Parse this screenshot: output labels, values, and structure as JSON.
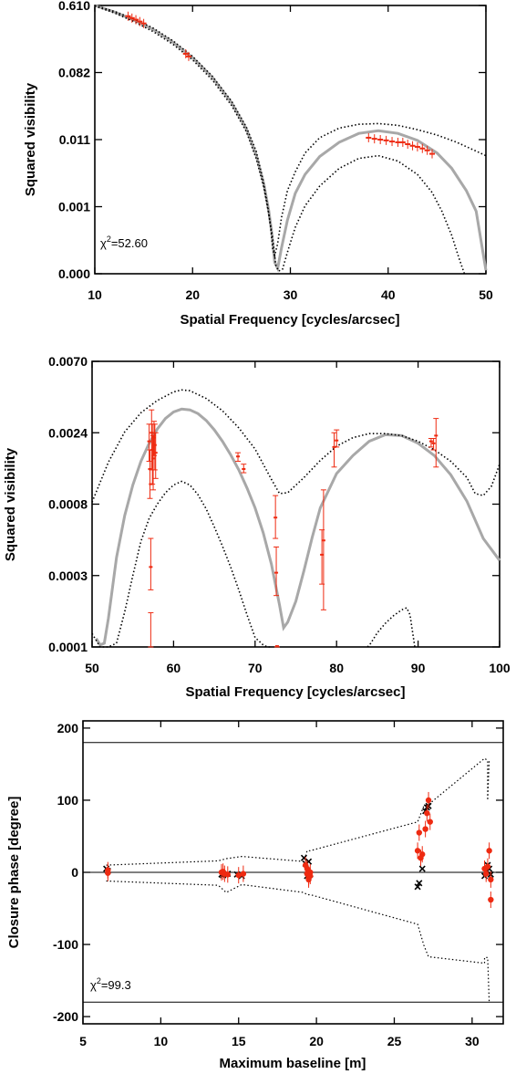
{
  "chart_data": [
    {
      "type": "scatter",
      "xlabel": "Spatial Frequency [cycles/arcsec]",
      "ylabel": "Squared visibility",
      "annotation_prefix": "χ",
      "annotation_sup": "2",
      "annotation_value": "=52.60",
      "xlim": [
        10,
        50
      ],
      "xticks": [
        10,
        20,
        30,
        40,
        50
      ],
      "yticks": [
        {
          "label": "0.610",
          "level": 1.0
        },
        {
          "label": "0.082",
          "level": 0.75
        },
        {
          "label": "0.011",
          "level": 0.5
        },
        {
          "label": "0.001",
          "level": 0.25
        },
        {
          "label": "0.000",
          "level": 0.0
        }
      ],
      "model_curve_x": [
        10.0,
        12.0,
        14.0,
        16.0,
        18.0,
        20.0,
        22.0,
        24.0,
        25.5,
        26.5,
        27.3,
        27.8,
        28.1,
        28.4,
        28.7,
        29.1,
        29.7,
        30.5,
        31.5,
        33.0,
        35.0,
        37.0,
        39.0,
        41.0,
        43.0,
        45.0,
        46.5,
        48.0,
        49.0,
        50.0
      ],
      "model_curve_y": [
        1.0,
        0.976,
        0.946,
        0.91,
        0.863,
        0.805,
        0.733,
        0.637,
        0.54,
        0.443,
        0.333,
        0.233,
        0.153,
        0.043,
        0.02,
        0.097,
        0.2,
        0.3,
        0.37,
        0.437,
        0.49,
        0.523,
        0.533,
        0.523,
        0.497,
        0.45,
        0.393,
        0.31,
        0.233,
        0.013
      ],
      "upper_bound_x": [
        10.0,
        12.0,
        14.0,
        16.0,
        18.0,
        20.0,
        22.0,
        24.0,
        25.5,
        26.5,
        27.2,
        27.7,
        28.0,
        28.2,
        28.4,
        28.7,
        29.1,
        29.7,
        30.5,
        31.5,
        33.0,
        35.0,
        37.0,
        39.0,
        41.0,
        43.0,
        45.0,
        47.0,
        49.0,
        50.0
      ],
      "upper_bound_y": [
        1.0,
        0.978,
        0.95,
        0.915,
        0.868,
        0.81,
        0.737,
        0.643,
        0.547,
        0.457,
        0.35,
        0.25,
        0.167,
        0.09,
        0.067,
        0.113,
        0.21,
        0.31,
        0.38,
        0.45,
        0.507,
        0.543,
        0.557,
        0.56,
        0.553,
        0.537,
        0.517,
        0.49,
        0.457,
        0.44
      ],
      "lower_bound_x": [
        10.0,
        12.0,
        14.0,
        16.0,
        18.0,
        20.0,
        22.0,
        24.0,
        25.5,
        26.5,
        27.3,
        27.8,
        28.2,
        28.5,
        28.8,
        29.2,
        29.8,
        30.5,
        31.5,
        33.0,
        35.0,
        37.0,
        39.0,
        41.0,
        43.0,
        44.5,
        45.5,
        46.5,
        47.2,
        47.8
      ],
      "lower_bound_y": [
        0.998,
        0.972,
        0.94,
        0.902,
        0.855,
        0.797,
        0.723,
        0.627,
        0.53,
        0.43,
        0.32,
        0.22,
        0.13,
        0.033,
        0.01,
        0.017,
        0.093,
        0.173,
        0.253,
        0.327,
        0.393,
        0.43,
        0.44,
        0.42,
        0.37,
        0.303,
        0.233,
        0.143,
        0.063,
        0.0
      ],
      "points_x": [
        13.4,
        13.8,
        14.2,
        14.6,
        15.0,
        19.3,
        19.6,
        38.0,
        38.6,
        39.2,
        39.8,
        40.4,
        41.0,
        41.5,
        42.0,
        42.5,
        43.0,
        43.5,
        44.0,
        44.5
      ],
      "points_y": [
        0.96,
        0.953,
        0.947,
        0.94,
        0.933,
        0.82,
        0.81,
        0.507,
        0.503,
        0.5,
        0.497,
        0.493,
        0.49,
        0.49,
        0.483,
        0.477,
        0.473,
        0.467,
        0.46,
        0.447
      ]
    },
    {
      "type": "scatter",
      "xlabel": "Spatial Frequency [cycles/arcsec]",
      "ylabel": "Squared visibility",
      "xlim": [
        50,
        100
      ],
      "xticks": [
        50,
        60,
        70,
        80,
        90,
        100
      ],
      "yticks": [
        {
          "label": "0.0070",
          "level": 1.0
        },
        {
          "label": "0.0024",
          "level": 0.75
        },
        {
          "label": "0.0008",
          "level": 0.5
        },
        {
          "label": "0.0003",
          "level": 0.25
        },
        {
          "label": "0.0001",
          "level": 0.0
        }
      ],
      "model_curve_x": [
        50.5,
        51.0,
        51.5,
        52.0,
        53.0,
        54.0,
        55.0,
        56.0,
        57.0,
        58.0,
        59.0,
        60.0,
        61.0,
        62.0,
        63.0,
        64.0,
        65.0,
        66.0,
        67.0,
        68.0,
        69.0,
        70.0,
        71.0,
        72.0,
        73.0,
        73.5,
        74.0,
        75.0,
        76.0,
        77.0,
        78.0,
        80.0,
        82.0,
        84.0,
        86.0,
        88.0,
        90.0,
        92.0,
        94.0,
        96.0,
        98.0,
        100.0
      ],
      "model_curve_y": [
        0.03,
        0.007,
        0.013,
        0.1,
        0.313,
        0.46,
        0.567,
        0.65,
        0.713,
        0.763,
        0.8,
        0.823,
        0.833,
        0.83,
        0.817,
        0.793,
        0.76,
        0.72,
        0.673,
        0.62,
        0.557,
        0.487,
        0.4,
        0.29,
        0.147,
        0.067,
        0.087,
        0.16,
        0.267,
        0.383,
        0.487,
        0.607,
        0.67,
        0.72,
        0.743,
        0.74,
        0.713,
        0.67,
        0.603,
        0.51,
        0.38,
        0.303
      ],
      "upper_bound_x": [
        50.0,
        52.0,
        54.0,
        56.0,
        58.0,
        60.0,
        61.0,
        62.0,
        64.0,
        66.0,
        68.0,
        70.0,
        72.0,
        73.0,
        74.0,
        76.0,
        78.0,
        80.0,
        82.0,
        84.0,
        86.0,
        88.0,
        90.0,
        92.0,
        94.0,
        96.0,
        97.0,
        98.0,
        99.0,
        100.0
      ],
      "upper_bound_y": [
        0.507,
        0.647,
        0.753,
        0.82,
        0.863,
        0.893,
        0.9,
        0.897,
        0.87,
        0.827,
        0.767,
        0.693,
        0.587,
        0.537,
        0.54,
        0.593,
        0.653,
        0.703,
        0.733,
        0.747,
        0.747,
        0.74,
        0.72,
        0.69,
        0.65,
        0.593,
        0.537,
        0.53,
        0.563,
        0.64
      ],
      "lower_bound_x": [
        50.0,
        50.5,
        51.0,
        52.0,
        53.0,
        54.0,
        55.0,
        56.0,
        57.0,
        58.0,
        59.0,
        60.0,
        61.0,
        62.0,
        63.0,
        64.0,
        65.0,
        66.0,
        67.0,
        68.0,
        69.0,
        70.0,
        71.0,
        71.5,
        72.0
      ],
      "lower_bound_y": [
        0.047,
        0.023,
        0.0,
        0.0,
        0.013,
        0.123,
        0.25,
        0.37,
        0.45,
        0.5,
        0.54,
        0.567,
        0.58,
        0.567,
        0.533,
        0.483,
        0.42,
        0.353,
        0.28,
        0.2,
        0.113,
        0.033,
        0.007,
        0.0,
        0.0
      ],
      "lower_bound2_x": [
        83.8,
        84.2,
        85.0,
        86.0,
        87.0,
        88.0,
        88.6,
        89.0,
        89.6
      ],
      "lower_bound2_y": [
        0.0,
        0.013,
        0.05,
        0.083,
        0.11,
        0.13,
        0.137,
        0.113,
        0.0
      ],
      "points_x": [
        57.0,
        57.1,
        57.2,
        57.2,
        57.3,
        57.4,
        57.5,
        57.6,
        57.7,
        57.8,
        67.9,
        68.6,
        72.5,
        72.6,
        72.7,
        78.2,
        78.4,
        79.7,
        80.0,
        91.6,
        91.9,
        92.2
      ],
      "points_y": [
        0.72,
        0.623,
        0.28,
        0.57,
        0.75,
        0.69,
        0.66,
        0.733,
        0.707,
        0.68,
        0.667,
        0.623,
        0.453,
        0.26,
        0.003,
        0.323,
        0.373,
        0.7,
        0.723,
        0.72,
        0.713,
        0.74
      ],
      "errors_low": [
        0.78,
        0.69,
        0.0,
        0.38,
        0.83,
        0.78,
        0.74,
        0.79,
        0.78,
        0.75,
        0.68,
        0.64,
        0.53,
        0.35,
        0.0,
        0.41,
        0.55,
        0.75,
        0.76,
        0.73,
        0.73,
        0.8
      ],
      "errors_high": [
        0.65,
        0.52,
        0.12,
        0.2,
        0.62,
        0.57,
        0.55,
        0.67,
        0.62,
        0.59,
        0.65,
        0.61,
        0.38,
        0.18,
        0.0,
        0.22,
        0.13,
        0.63,
        0.7,
        0.7,
        0.69,
        0.63
      ]
    },
    {
      "type": "scatter",
      "xlabel": "Maximum baseline [m]",
      "ylabel": "Closure phase [degree]",
      "annotation_prefix": "χ",
      "annotation_sup": "2",
      "annotation_value": "=99.3",
      "xlim": [
        5,
        32
      ],
      "ylim": [
        -210,
        210
      ],
      "xticks": [
        5,
        10,
        15,
        20,
        25,
        30
      ],
      "yticks": [
        -200,
        -100,
        0,
        100,
        200
      ],
      "reference_lines": [
        -180,
        0,
        180
      ],
      "upper_bound_x": [
        6.5,
        13.7,
        14.2,
        15.2,
        19.2,
        19.4,
        19.6,
        26.5,
        26.9,
        27.2,
        30.8,
        31.0,
        31.0,
        31.1
      ],
      "upper_bound_y": [
        10,
        16,
        19,
        22,
        15,
        30,
        30,
        70,
        92,
        94,
        158,
        155,
        100,
        156
      ],
      "lower_bound_x": [
        6.5,
        13.7,
        14.2,
        15.2,
        19.2,
        19.4,
        19.6,
        26.5,
        26.9,
        27.2,
        30.8,
        30.8,
        31.0,
        31.1
      ],
      "lower_bound_y": [
        -12,
        -18,
        -28,
        -17,
        -28,
        -31,
        -31,
        -72,
        -101,
        -117,
        -126,
        -118,
        -118,
        -180
      ],
      "points_x": [
        6.6,
        6.6,
        13.9,
        14.0,
        14.1,
        14.3,
        15.0,
        15.3,
        19.3,
        19.4,
        19.4,
        19.5,
        19.5,
        19.6,
        19.6,
        26.5,
        26.6,
        26.7,
        26.8,
        27.0,
        27.1,
        27.2,
        27.3,
        30.8,
        30.9,
        31.0,
        31.1,
        31.2,
        31.2
      ],
      "points_y": [
        3,
        -1,
        0,
        1,
        -2,
        -3,
        -4,
        -2,
        10,
        5,
        -2,
        -7,
        -10,
        0,
        -5,
        30,
        55,
        20,
        25,
        60,
        82,
        100,
        70,
        5,
        -2,
        8,
        30,
        -10,
        -38
      ],
      "model_x": [
        6.5,
        6.6,
        13.9,
        14.0,
        14.3,
        14.9,
        15.2,
        19.2,
        19.3,
        19.4,
        19.5,
        19.6,
        26.5,
        26.6,
        26.8,
        27.0,
        27.1,
        27.2,
        30.8,
        30.9,
        31.0,
        31.1,
        31.2
      ],
      "model_y": [
        5,
        2,
        -3,
        -4,
        -2,
        -3,
        -5,
        20,
        12,
        -5,
        15,
        -3,
        -20,
        -15,
        5,
        85,
        90,
        92,
        -5,
        0,
        10,
        5,
        -3
      ]
    }
  ]
}
